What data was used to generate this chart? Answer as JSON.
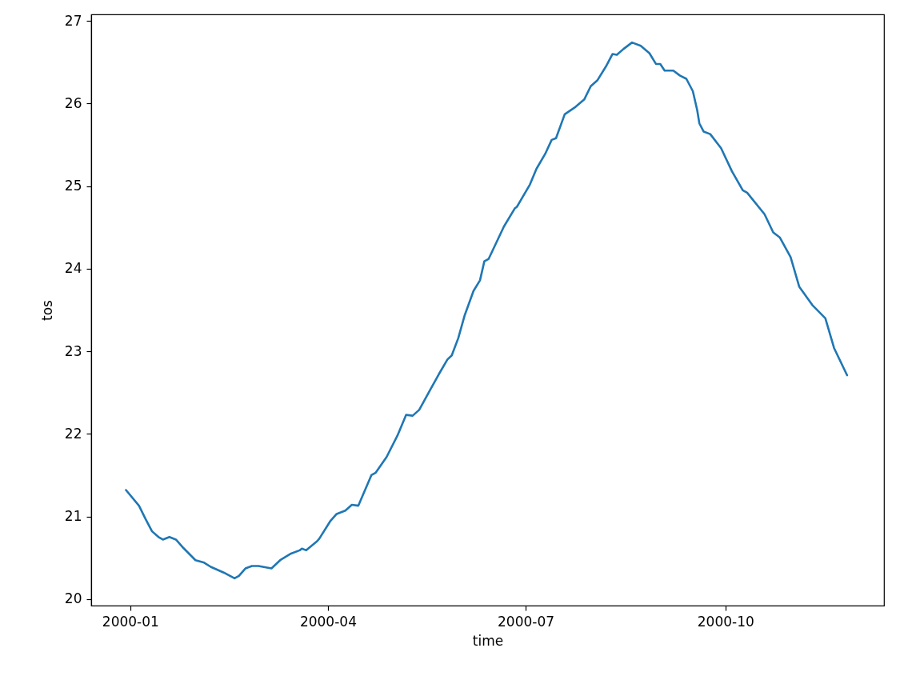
{
  "chart_data": {
    "type": "line",
    "xlabel": "time",
    "ylabel": "tos",
    "x": [
      "1999-12-30",
      "2000-01-05",
      "2000-01-08",
      "2000-01-11",
      "2000-01-14",
      "2000-01-16",
      "2000-01-19",
      "2000-01-22",
      "2000-01-25",
      "2000-01-28",
      "2000-01-31",
      "2000-02-04",
      "2000-02-07",
      "2000-02-13",
      "2000-02-18",
      "2000-02-20",
      "2000-02-23",
      "2000-02-26",
      "2000-02-29",
      "2000-03-06",
      "2000-03-10",
      "2000-03-15",
      "2000-03-19",
      "2000-03-20",
      "2000-03-22",
      "2000-03-27",
      "2000-03-28",
      "2000-04-02",
      "2000-04-05",
      "2000-04-09",
      "2000-04-12",
      "2000-04-15",
      "2000-04-21",
      "2000-04-23",
      "2000-04-28",
      "2000-05-03",
      "2000-05-07",
      "2000-05-10",
      "2000-05-13",
      "2000-05-18",
      "2000-05-22",
      "2000-05-26",
      "2000-05-28",
      "2000-05-31",
      "2000-06-03",
      "2000-06-07",
      "2000-06-10",
      "2000-06-12",
      "2000-06-14",
      "2000-06-21",
      "2000-06-26",
      "2000-06-27",
      "2000-07-03",
      "2000-07-06",
      "2000-07-10",
      "2000-07-13",
      "2000-07-15",
      "2000-07-19",
      "2000-07-24",
      "2000-07-28",
      "2000-07-31",
      "2000-08-03",
      "2000-08-07",
      "2000-08-10",
      "2000-08-12",
      "2000-08-15",
      "2000-08-19",
      "2000-08-23",
      "2000-08-27",
      "2000-08-30",
      "2000-09-01",
      "2000-09-03",
      "2000-09-07",
      "2000-09-10",
      "2000-09-13",
      "2000-09-16",
      "2000-09-18",
      "2000-09-19",
      "2000-09-21",
      "2000-09-24",
      "2000-09-29",
      "2000-10-04",
      "2000-10-09",
      "2000-10-11",
      "2000-10-19",
      "2000-10-23",
      "2000-10-26",
      "2000-10-31",
      "2000-11-04",
      "2000-11-10",
      "2000-11-16",
      "2000-11-20",
      "2000-11-26"
    ],
    "series": [
      {
        "color": "#1f77b4",
        "values": [
          21.32,
          21.13,
          20.97,
          20.82,
          20.75,
          20.72,
          20.75,
          20.72,
          20.63,
          20.55,
          20.47,
          20.44,
          20.39,
          20.32,
          20.25,
          20.28,
          20.37,
          20.4,
          20.4,
          20.37,
          20.47,
          20.55,
          20.59,
          20.61,
          20.59,
          20.7,
          20.73,
          20.94,
          21.03,
          21.07,
          21.14,
          21.13,
          21.5,
          21.53,
          21.72,
          21.98,
          22.23,
          22.22,
          22.29,
          22.53,
          22.72,
          22.9,
          22.95,
          23.16,
          23.44,
          23.73,
          23.86,
          24.09,
          24.12,
          24.51,
          24.73,
          24.75,
          25.02,
          25.21,
          25.39,
          25.56,
          25.58,
          25.87,
          25.96,
          26.05,
          26.21,
          26.28,
          26.45,
          26.6,
          26.59,
          26.66,
          26.74,
          26.7,
          26.61,
          26.48,
          26.48,
          26.4,
          26.4,
          26.34,
          26.3,
          26.15,
          25.92,
          25.76,
          25.66,
          25.63,
          25.46,
          25.18,
          24.95,
          24.92,
          24.66,
          24.44,
          24.38,
          24.14,
          23.78,
          23.56,
          23.4,
          23.04,
          22.71
        ]
      }
    ],
    "xlim": [
      "1999-12-14",
      "2000-12-13"
    ],
    "xticks": [
      "2000-01",
      "2000-04",
      "2000-07",
      "2000-10"
    ],
    "ylim": [
      19.92,
      27.08
    ],
    "yticks": [
      20,
      21,
      22,
      23,
      24,
      25,
      26,
      27
    ]
  }
}
